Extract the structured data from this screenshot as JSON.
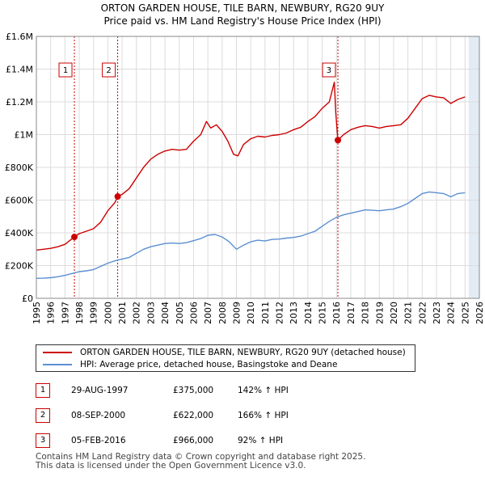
{
  "title": {
    "line1": "ORTON GARDEN HOUSE, TILE BARN, NEWBURY, RG20 9UY",
    "line2": "Price paid vs. HM Land Registry's House Price Index (HPI)"
  },
  "colors": {
    "property": "#cc0000",
    "hpi": "#5b8fd2",
    "grid": "#dcdcdc",
    "future_shade": "#dce6f2"
  },
  "chart_data": {
    "type": "line",
    "x_range": [
      1995,
      2026
    ],
    "ylim": [
      0,
      1600000
    ],
    "y_ticks": [
      {
        "value": 0,
        "label": "£0"
      },
      {
        "value": 200000,
        "label": "£200K"
      },
      {
        "value": 400000,
        "label": "£400K"
      },
      {
        "value": 600000,
        "label": "£600K"
      },
      {
        "value": 800000,
        "label": "£800K"
      },
      {
        "value": 1000000,
        "label": "£1M"
      },
      {
        "value": 1200000,
        "label": "£1.2M"
      },
      {
        "value": 1400000,
        "label": "£1.4M"
      },
      {
        "value": 1600000,
        "label": "£1.6M"
      }
    ],
    "x_ticks": [
      "1995",
      "1996",
      "1997",
      "1998",
      "1999",
      "2000",
      "2001",
      "2002",
      "2003",
      "2004",
      "2005",
      "2006",
      "2007",
      "2008",
      "2009",
      "2010",
      "2011",
      "2012",
      "2013",
      "2014",
      "2015",
      "2016",
      "2017",
      "2018",
      "2019",
      "2020",
      "2021",
      "2022",
      "2023",
      "2024",
      "2025",
      "2026"
    ],
    "future_start": 2025.25,
    "series": [
      {
        "name": "ORTON GARDEN HOUSE, TILE BARN, NEWBURY, RG20 9UY (detached house)",
        "key": "property",
        "points": [
          [
            1995.0,
            295000
          ],
          [
            1995.5,
            300000
          ],
          [
            1996.0,
            305000
          ],
          [
            1996.5,
            315000
          ],
          [
            1997.0,
            330000
          ],
          [
            1997.66,
            375000
          ],
          [
            1998.0,
            395000
          ],
          [
            1998.5,
            410000
          ],
          [
            1999.0,
            425000
          ],
          [
            1999.5,
            465000
          ],
          [
            2000.0,
            535000
          ],
          [
            2000.5,
            585000
          ],
          [
            2000.69,
            622000
          ],
          [
            2001.0,
            635000
          ],
          [
            2001.5,
            670000
          ],
          [
            2002.0,
            735000
          ],
          [
            2002.5,
            800000
          ],
          [
            2003.0,
            850000
          ],
          [
            2003.5,
            880000
          ],
          [
            2004.0,
            900000
          ],
          [
            2004.5,
            910000
          ],
          [
            2005.0,
            905000
          ],
          [
            2005.5,
            910000
          ],
          [
            2006.0,
            960000
          ],
          [
            2006.5,
            1000000
          ],
          [
            2006.9,
            1080000
          ],
          [
            2007.2,
            1040000
          ],
          [
            2007.6,
            1060000
          ],
          [
            2008.0,
            1020000
          ],
          [
            2008.4,
            960000
          ],
          [
            2008.8,
            880000
          ],
          [
            2009.1,
            870000
          ],
          [
            2009.5,
            940000
          ],
          [
            2010.0,
            975000
          ],
          [
            2010.5,
            990000
          ],
          [
            2011.0,
            985000
          ],
          [
            2011.5,
            995000
          ],
          [
            2012.0,
            1000000
          ],
          [
            2012.5,
            1010000
          ],
          [
            2013.0,
            1030000
          ],
          [
            2013.5,
            1045000
          ],
          [
            2014.0,
            1080000
          ],
          [
            2014.5,
            1110000
          ],
          [
            2015.0,
            1160000
          ],
          [
            2015.5,
            1200000
          ],
          [
            2015.85,
            1320000
          ],
          [
            2015.95,
            1140000
          ],
          [
            2016.1,
            966000
          ],
          [
            2016.5,
            1000000
          ],
          [
            2017.0,
            1030000
          ],
          [
            2017.5,
            1045000
          ],
          [
            2018.0,
            1055000
          ],
          [
            2018.5,
            1050000
          ],
          [
            2019.0,
            1040000
          ],
          [
            2019.5,
            1050000
          ],
          [
            2020.0,
            1055000
          ],
          [
            2020.5,
            1060000
          ],
          [
            2021.0,
            1100000
          ],
          [
            2021.5,
            1160000
          ],
          [
            2022.0,
            1220000
          ],
          [
            2022.5,
            1240000
          ],
          [
            2023.0,
            1230000
          ],
          [
            2023.5,
            1225000
          ],
          [
            2024.0,
            1190000
          ],
          [
            2024.5,
            1215000
          ],
          [
            2025.0,
            1230000
          ]
        ]
      },
      {
        "name": "HPI: Average price, detached house, Basingstoke and Deane",
        "key": "hpi",
        "points": [
          [
            1995.0,
            122000
          ],
          [
            1995.5,
            123000
          ],
          [
            1996.0,
            126000
          ],
          [
            1996.5,
            132000
          ],
          [
            1997.0,
            140000
          ],
          [
            1997.66,
            155000
          ],
          [
            1998.0,
            163000
          ],
          [
            1998.5,
            168000
          ],
          [
            1999.0,
            176000
          ],
          [
            1999.5,
            195000
          ],
          [
            2000.0,
            215000
          ],
          [
            2000.69,
            234000
          ],
          [
            2001.0,
            240000
          ],
          [
            2001.5,
            250000
          ],
          [
            2002.0,
            275000
          ],
          [
            2002.5,
            300000
          ],
          [
            2003.0,
            315000
          ],
          [
            2003.5,
            325000
          ],
          [
            2004.0,
            335000
          ],
          [
            2004.5,
            338000
          ],
          [
            2005.0,
            335000
          ],
          [
            2005.5,
            340000
          ],
          [
            2006.0,
            352000
          ],
          [
            2006.5,
            365000
          ],
          [
            2007.0,
            385000
          ],
          [
            2007.5,
            390000
          ],
          [
            2008.0,
            375000
          ],
          [
            2008.5,
            345000
          ],
          [
            2009.0,
            300000
          ],
          [
            2009.5,
            325000
          ],
          [
            2010.0,
            345000
          ],
          [
            2010.5,
            355000
          ],
          [
            2011.0,
            350000
          ],
          [
            2011.5,
            360000
          ],
          [
            2012.0,
            362000
          ],
          [
            2012.5,
            368000
          ],
          [
            2013.0,
            372000
          ],
          [
            2013.5,
            380000
          ],
          [
            2014.0,
            395000
          ],
          [
            2014.5,
            410000
          ],
          [
            2015.0,
            440000
          ],
          [
            2015.5,
            470000
          ],
          [
            2016.0,
            495000
          ],
          [
            2016.5,
            510000
          ],
          [
            2017.0,
            520000
          ],
          [
            2017.5,
            530000
          ],
          [
            2018.0,
            540000
          ],
          [
            2018.5,
            538000
          ],
          [
            2019.0,
            535000
          ],
          [
            2019.5,
            540000
          ],
          [
            2020.0,
            545000
          ],
          [
            2020.5,
            560000
          ],
          [
            2021.0,
            580000
          ],
          [
            2021.5,
            610000
          ],
          [
            2022.0,
            640000
          ],
          [
            2022.5,
            650000
          ],
          [
            2023.0,
            645000
          ],
          [
            2023.5,
            640000
          ],
          [
            2024.0,
            620000
          ],
          [
            2024.5,
            640000
          ],
          [
            2025.0,
            645000
          ]
        ]
      }
    ],
    "sales": [
      {
        "label": "1",
        "date": 1997.66,
        "price": 375000
      },
      {
        "label": "2",
        "date": 2000.69,
        "price": 622000
      },
      {
        "label": "3",
        "date": 2016.1,
        "price": 966000
      }
    ]
  },
  "legend": {
    "property_label": "ORTON GARDEN HOUSE, TILE BARN, NEWBURY, RG20 9UY (detached house)",
    "hpi_label": "HPI: Average price, detached house, Basingstoke and Deane"
  },
  "transactions": [
    {
      "num": "1",
      "date": "29-AUG-1997",
      "price": "£375,000",
      "hpi": "142% ↑ HPI"
    },
    {
      "num": "2",
      "date": "08-SEP-2000",
      "price": "£622,000",
      "hpi": "166% ↑ HPI"
    },
    {
      "num": "3",
      "date": "05-FEB-2016",
      "price": "£966,000",
      "hpi": "92% ↑ HPI"
    }
  ],
  "footer": {
    "line1": "Contains HM Land Registry data © Crown copyright and database right 2025.",
    "line2": "This data is licensed under the Open Government Licence v3.0."
  }
}
